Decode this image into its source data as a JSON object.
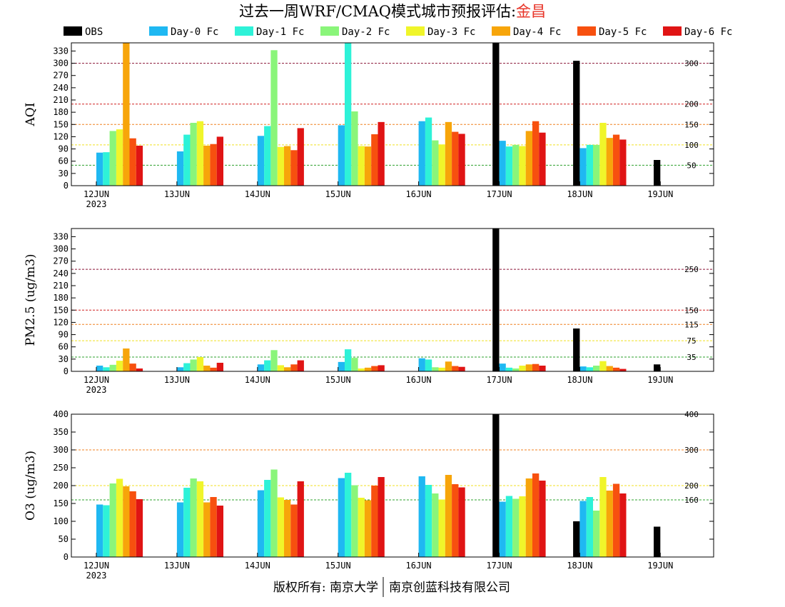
{
  "title": "过去一周WRF/CMAQ模式城市预报评估:",
  "city": "金昌",
  "footer": {
    "left": "版权所有: 南京大学",
    "right": "南京创蓝科技有限公司"
  },
  "colors": {
    "OBS": "#000000",
    "Day-0 Fc": "#1fb8f2",
    "Day-1 Fc": "#2ef2d8",
    "Day-2 Fc": "#8af57a",
    "Day-3 Fc": "#f0f52a",
    "Day-4 Fc": "#f7a50a",
    "Day-5 Fc": "#f7500f",
    "Day-6 Fc": "#e01414",
    "title_city": "#e8362a"
  },
  "chart_data": [
    {
      "type": "bar",
      "ylabel": "AQI",
      "ylim": [
        0,
        350
      ],
      "yticks": [
        0,
        30,
        60,
        90,
        120,
        150,
        180,
        210,
        240,
        270,
        300,
        330
      ],
      "categories": [
        "12JUN",
        "13JUN",
        "14JUN",
        "15JUN",
        "16JUN",
        "17JUN",
        "18JUN",
        "19JUN"
      ],
      "first_category_year": "2023",
      "legend": [
        "OBS",
        "Day-0 Fc",
        "Day-1 Fc",
        "Day-2 Fc",
        "Day-3 Fc",
        "Day-4 Fc",
        "Day-5 Fc",
        "Day-6 Fc"
      ],
      "reference_lines": [
        {
          "value": 50,
          "label": "50",
          "color": "#2ca02c"
        },
        {
          "value": 100,
          "label": "100",
          "color": "#f0e020"
        },
        {
          "value": 150,
          "label": "150",
          "color": "#f08020"
        },
        {
          "value": 200,
          "label": "200",
          "color": "#d02020"
        },
        {
          "value": 300,
          "label": "300",
          "color": "#8b1538"
        }
      ],
      "series": [
        {
          "name": "OBS",
          "values": [
            null,
            null,
            null,
            null,
            null,
            350,
            306,
            63
          ]
        },
        {
          "name": "Day-0 Fc",
          "values": [
            81,
            84,
            122,
            148,
            158,
            110,
            92,
            null
          ]
        },
        {
          "name": "Day-1 Fc",
          "values": [
            82,
            125,
            146,
            350,
            167,
            96,
            100,
            null
          ]
        },
        {
          "name": "Day-2 Fc",
          "values": [
            134,
            154,
            332,
            182,
            111,
            100,
            100,
            null
          ]
        },
        {
          "name": "Day-3 Fc",
          "values": [
            138,
            158,
            95,
            97,
            101,
            97,
            154,
            null
          ]
        },
        {
          "name": "Day-4 Fc",
          "values": [
            350,
            98,
            97,
            96,
            156,
            134,
            117,
            null
          ]
        },
        {
          "name": "Day-5 Fc",
          "values": [
            116,
            102,
            87,
            126,
            132,
            158,
            125,
            null
          ]
        },
        {
          "name": "Day-6 Fc",
          "values": [
            98,
            120,
            141,
            156,
            127,
            130,
            113,
            null
          ]
        }
      ]
    },
    {
      "type": "bar",
      "ylabel": "PM2.5 (ug/m3)",
      "ylim": [
        0,
        350
      ],
      "yticks": [
        0,
        30,
        60,
        90,
        120,
        150,
        180,
        210,
        240,
        270,
        300,
        330
      ],
      "categories": [
        "12JUN",
        "13JUN",
        "14JUN",
        "15JUN",
        "16JUN",
        "17JUN",
        "18JUN",
        "19JUN"
      ],
      "first_category_year": "2023",
      "reference_lines": [
        {
          "value": 35,
          "label": "35",
          "color": "#2ca02c"
        },
        {
          "value": 75,
          "label": "75",
          "color": "#f0e020"
        },
        {
          "value": 115,
          "label": "115",
          "color": "#f08020"
        },
        {
          "value": 150,
          "label": "150",
          "color": "#d02020"
        },
        {
          "value": 250,
          "label": "250",
          "color": "#8b1538"
        }
      ],
      "series": [
        {
          "name": "OBS",
          "values": [
            null,
            null,
            null,
            null,
            null,
            350,
            105,
            17
          ]
        },
        {
          "name": "Day-0 Fc",
          "values": [
            14,
            10,
            17,
            23,
            32,
            19,
            12,
            null
          ]
        },
        {
          "name": "Day-1 Fc",
          "values": [
            10,
            20,
            27,
            54,
            29,
            9,
            10,
            null
          ]
        },
        {
          "name": "Day-2 Fc",
          "values": [
            16,
            29,
            52,
            33,
            10,
            7,
            14,
            null
          ]
        },
        {
          "name": "Day-3 Fc",
          "values": [
            26,
            35,
            15,
            7,
            9,
            14,
            25,
            null
          ]
        },
        {
          "name": "Day-4 Fc",
          "values": [
            56,
            14,
            10,
            9,
            24,
            17,
            13,
            null
          ]
        },
        {
          "name": "Day-5 Fc",
          "values": [
            19,
            9,
            17,
            13,
            13,
            18,
            9,
            null
          ]
        },
        {
          "name": "Day-6 Fc",
          "values": [
            7,
            21,
            27,
            15,
            11,
            14,
            6,
            null
          ]
        }
      ]
    },
    {
      "type": "bar",
      "ylabel": "O3 (ug/m3)",
      "ylim": [
        0,
        400
      ],
      "yticks": [
        0,
        50,
        100,
        150,
        200,
        250,
        300,
        350,
        400
      ],
      "categories": [
        "12JUN",
        "13JUN",
        "14JUN",
        "15JUN",
        "16JUN",
        "17JUN",
        "18JUN",
        "19JUN"
      ],
      "first_category_year": "2023",
      "reference_lines": [
        {
          "value": 160,
          "label": "160",
          "color": "#2ca02c"
        },
        {
          "value": 200,
          "label": "200",
          "color": "#f0e020"
        },
        {
          "value": 300,
          "label": "300",
          "color": "#f08020"
        },
        {
          "value": 400,
          "label": "400",
          "color": "#d02020"
        }
      ],
      "series": [
        {
          "name": "OBS",
          "values": [
            null,
            null,
            null,
            null,
            null,
            400,
            100,
            85
          ]
        },
        {
          "name": "Day-0 Fc",
          "values": [
            147,
            153,
            187,
            221,
            226,
            155,
            157,
            null
          ]
        },
        {
          "name": "Day-1 Fc",
          "values": [
            145,
            194,
            216,
            236,
            202,
            171,
            168,
            null
          ]
        },
        {
          "name": "Day-2 Fc",
          "values": [
            206,
            220,
            245,
            201,
            178,
            163,
            130,
            null
          ]
        },
        {
          "name": "Day-3 Fc",
          "values": [
            219,
            212,
            167,
            166,
            161,
            170,
            224,
            null
          ]
        },
        {
          "name": "Day-4 Fc",
          "values": [
            198,
            153,
            160,
            159,
            230,
            220,
            186,
            null
          ]
        },
        {
          "name": "Day-5 Fc",
          "values": [
            184,
            168,
            147,
            200,
            204,
            234,
            205,
            null
          ]
        },
        {
          "name": "Day-6 Fc",
          "values": [
            162,
            144,
            212,
            224,
            195,
            214,
            178,
            null
          ]
        }
      ]
    }
  ]
}
